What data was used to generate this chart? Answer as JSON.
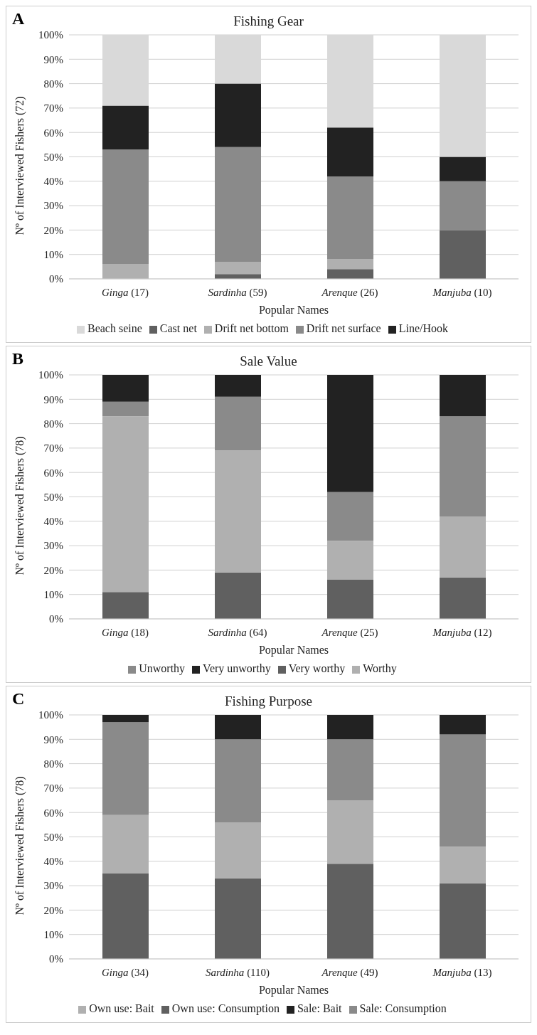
{
  "chart_data": [
    {
      "type": "bar",
      "stacked": true,
      "title": "Fishing Gear",
      "annotations": [
        "A"
      ],
      "xlabel": "Popular Names",
      "ylabel": "Nº of Interviewed Fishers (72)",
      "categories": [
        "Ginga (17)",
        "Sardinha (59)",
        "Arenque (26)",
        "Manjuba (10)"
      ],
      "ylim": [
        0,
        100
      ],
      "yticks": [
        {
          "value": 0,
          "label": "0%"
        },
        {
          "value": 10,
          "label": "10%"
        },
        {
          "value": 20,
          "label": "20%"
        },
        {
          "value": 30,
          "label": "30%"
        },
        {
          "value": 40,
          "label": "40%"
        },
        {
          "value": 50,
          "label": "50%"
        },
        {
          "value": 60,
          "label": "60%"
        },
        {
          "value": 70,
          "label": "70%"
        },
        {
          "value": 80,
          "label": "80%"
        },
        {
          "value": 90,
          "label": "90%"
        },
        {
          "value": 100,
          "label": "100%"
        }
      ],
      "grid": "y",
      "legend": "bottom",
      "series": [
        {
          "name": "Cast net",
          "color": "#606060",
          "values": [
            0,
            2,
            4,
            20
          ]
        },
        {
          "name": "Drift net bottom",
          "color": "#b0b0b0",
          "values": [
            6,
            5,
            4,
            0
          ]
        },
        {
          "name": "Drift net surface",
          "color": "#8a8a8a",
          "values": [
            47,
            47,
            34,
            20
          ]
        },
        {
          "name": "Line/Hook",
          "color": "#222222",
          "values": [
            18,
            26,
            20,
            10
          ]
        },
        {
          "name": "Beach seine",
          "color": "#d9d9d9",
          "values": [
            29,
            20,
            38,
            50
          ]
        }
      ]
    },
    {
      "type": "bar",
      "stacked": true,
      "title": "Sale Value",
      "annotations": [
        "B"
      ],
      "xlabel": "Popular Names",
      "ylabel": "Nº of Interviewed Fishers (78)",
      "categories": [
        "Ginga (18)",
        "Sardinha (64)",
        "Arenque (25)",
        "Manjuba (12)"
      ],
      "ylim": [
        0,
        100
      ],
      "yticks": [
        {
          "value": 0,
          "label": "0%"
        },
        {
          "value": 10,
          "label": "10%"
        },
        {
          "value": 20,
          "label": "20%"
        },
        {
          "value": 30,
          "label": "30%"
        },
        {
          "value": 40,
          "label": "40%"
        },
        {
          "value": 50,
          "label": "50%"
        },
        {
          "value": 60,
          "label": "60%"
        },
        {
          "value": 70,
          "label": "70%"
        },
        {
          "value": 80,
          "label": "80%"
        },
        {
          "value": 90,
          "label": "90%"
        },
        {
          "value": 100,
          "label": "100%"
        }
      ],
      "grid": "y",
      "legend": "bottom",
      "series": [
        {
          "name": "Very worthy",
          "color": "#606060",
          "values": [
            11,
            19,
            16,
            17
          ]
        },
        {
          "name": "Worthy",
          "color": "#b0b0b0",
          "values": [
            72,
            50,
            16,
            25
          ]
        },
        {
          "name": "Unworthy",
          "color": "#8a8a8a",
          "values": [
            6,
            22,
            20,
            41
          ]
        },
        {
          "name": "Very unworthy",
          "color": "#222222",
          "values": [
            11,
            9,
            48,
            17
          ]
        }
      ]
    },
    {
      "type": "bar",
      "stacked": true,
      "title": "Fishing Purpose",
      "annotations": [
        "C"
      ],
      "xlabel": "Popular Names",
      "ylabel": "Nº of Interviewed Fishers (78)",
      "categories": [
        "Ginga (34)",
        "Sardinha (110)",
        "Arenque (49)",
        "Manjuba (13)"
      ],
      "ylim": [
        0,
        100
      ],
      "yticks": [
        {
          "value": 0,
          "label": "0%"
        },
        {
          "value": 10,
          "label": "10%"
        },
        {
          "value": 20,
          "label": "20%"
        },
        {
          "value": 30,
          "label": "30%"
        },
        {
          "value": 40,
          "label": "40%"
        },
        {
          "value": 50,
          "label": "50%"
        },
        {
          "value": 60,
          "label": "60%"
        },
        {
          "value": 70,
          "label": "70%"
        },
        {
          "value": 80,
          "label": "80%"
        },
        {
          "value": 90,
          "label": "90%"
        },
        {
          "value": 100,
          "label": "100%"
        }
      ],
      "grid": "y",
      "legend": "bottom",
      "series": [
        {
          "name": "Own use: Consumption",
          "color": "#606060",
          "values": [
            35,
            33,
            39,
            31
          ]
        },
        {
          "name": "Own use: Bait",
          "color": "#b0b0b0",
          "values": [
            24,
            23,
            26,
            15
          ]
        },
        {
          "name": "Sale: Consumption",
          "color": "#8a8a8a",
          "values": [
            38,
            34,
            25,
            46
          ]
        },
        {
          "name": "Sale: Bait",
          "color": "#222222",
          "values": [
            3,
            10,
            10,
            8
          ]
        }
      ]
    }
  ]
}
